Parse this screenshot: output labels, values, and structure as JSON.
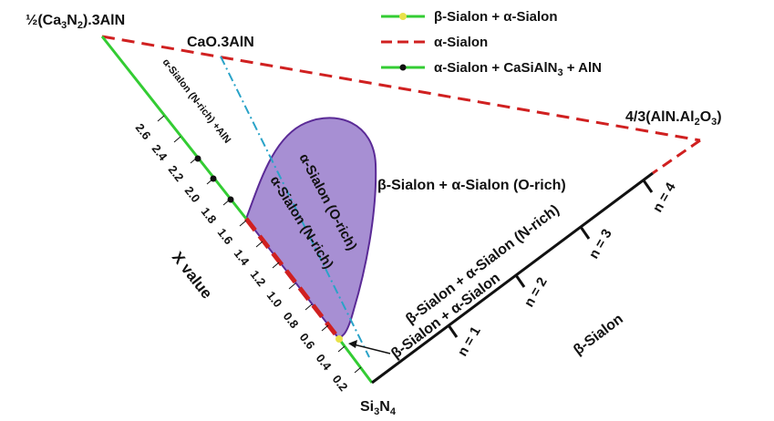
{
  "colors": {
    "green": "#33cc33",
    "red_dash": "#d02020",
    "black": "#111111",
    "blue_dashdot": "#2aa3c8",
    "region_fill": "#a78fd3",
    "region_stroke": "#5a2a96",
    "yellow_marker": "#e8e24a",
    "dot": "#111111"
  },
  "vertices": {
    "top_left": "½(Ca3N2).3AlN",
    "top_left_prefix": "½(Ca",
    "top_left_sub1": "3",
    "top_left_mid": "N",
    "top_left_sub2": "2",
    "top_left_suffix": ").3AlN",
    "top_mid": "CaO.3AlN",
    "right": "4/3(AlN.Al2O3)",
    "right_prefix": "4/3(AlN.Al",
    "right_sub1": "2",
    "right_mid": "O",
    "right_sub2": "3",
    "right_suffix": ")",
    "bottom": "Si3N4",
    "bottom_prefix": "Si",
    "bottom_sub1": "3",
    "bottom_mid": "N",
    "bottom_sub2": "4"
  },
  "legend": [
    {
      "label": "β-Sialon + α-Sialon",
      "line": "green",
      "marker": "yellow"
    },
    {
      "label": "α-Sialon",
      "line": "red-dash",
      "marker": "none"
    },
    {
      "label": "α-Sialon + CaSiAlN3 + AlN",
      "prefix": "α-Sialon + CaSiAlN",
      "sub": "3",
      "suffix": " + AlN",
      "line": "green",
      "marker": "black-dot"
    }
  ],
  "x_axis": {
    "label": "X value",
    "ticks": [
      "2.6",
      "2.4",
      "2.2",
      "2.0",
      "1.8",
      "1.6",
      "1.4",
      "1.2",
      "1.0",
      "0.8",
      "0.6",
      "0.4",
      "0.2"
    ]
  },
  "n_ticks": [
    "n = 1",
    "n = 2",
    "n = 3",
    "n = 4"
  ],
  "regions": {
    "alpha_n_rich_aln": "α-Sialon (N-rich) +AlN",
    "alpha_o_rich": "α-Sialon (O-rich)",
    "alpha_n_rich": "α-Sialon (N-rich)",
    "beta_alpha_o_rich": "β-Sialon + α-Sialon (O-rich)",
    "beta_alpha_n_rich": "β-Sialon + α-Sialon (N-rich)",
    "beta_alpha_arrow": "β-Sialon + α-Sialon",
    "beta": "β-Sialon"
  }
}
